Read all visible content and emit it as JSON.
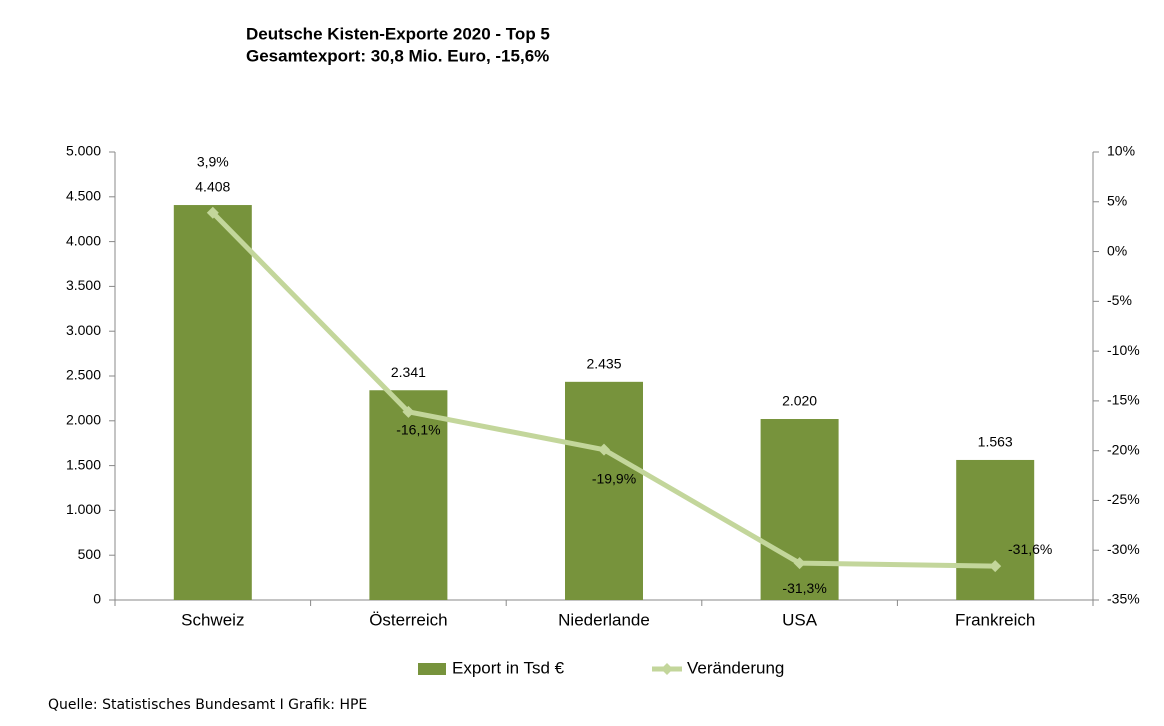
{
  "chart_data": {
    "type": "bar",
    "title": "Deutsche Kisten-Exporte 2020 - Top 5",
    "subtitle": "Gesamtexport: 30,8 Mio. Euro, -15,6%",
    "source": "Quelle: Statistisches Bundesamt I Grafik: HPE",
    "categories": [
      "Schweiz",
      "Österreich",
      "Niederlande",
      "USA",
      "Frankreich"
    ],
    "series": [
      {
        "name": "Export in Tsd €",
        "color": "#77933c",
        "values": [
          4408,
          2341,
          2435,
          2020,
          1563
        ],
        "value_labels": [
          "4.408",
          "2.341",
          "2.435",
          "2.020",
          "1.563"
        ]
      },
      {
        "name": "Veränderung",
        "color": "#c3d69b",
        "type": "line",
        "axis": "y2",
        "values": [
          3.9,
          -16.1,
          -19.9,
          -31.3,
          -31.6
        ],
        "value_labels": [
          "3,9%",
          "-16,1%",
          "-19,9%",
          "-31,3%",
          "-31,6%"
        ]
      }
    ],
    "ylim": [
      0,
      5000
    ],
    "yticks": [
      0,
      500,
      {
        "value": 1000,
        "label": "1.000"
      },
      {
        "value": 1500,
        "label": "1.500"
      },
      {
        "value": 2000,
        "label": "2.000"
      },
      {
        "value": 2500,
        "label": "2.500"
      },
      {
        "value": 3000,
        "label": "3.000"
      },
      {
        "value": 3500,
        "label": "3.500"
      },
      {
        "value": 4000,
        "label": "4.000"
      },
      {
        "value": 4500,
        "label": "4.500"
      },
      {
        "value": 5000,
        "label": "5.000"
      }
    ],
    "y2lim": [
      -35,
      10
    ],
    "y2ticks": [
      {
        "value": -35,
        "label": "-35%"
      },
      {
        "value": -30,
        "label": "-30%"
      },
      {
        "value": -25,
        "label": "-25%"
      },
      {
        "value": -20,
        "label": "-20%"
      },
      {
        "value": -15,
        "label": "-15%"
      },
      {
        "value": -10,
        "label": "-10%"
      },
      {
        "value": -5,
        "label": "-5%"
      },
      {
        "value": 0,
        "label": "0%"
      },
      {
        "value": 5,
        "label": "5%"
      },
      {
        "value": 10,
        "label": "10%"
      }
    ],
    "grid": false,
    "legend": "bottom"
  }
}
